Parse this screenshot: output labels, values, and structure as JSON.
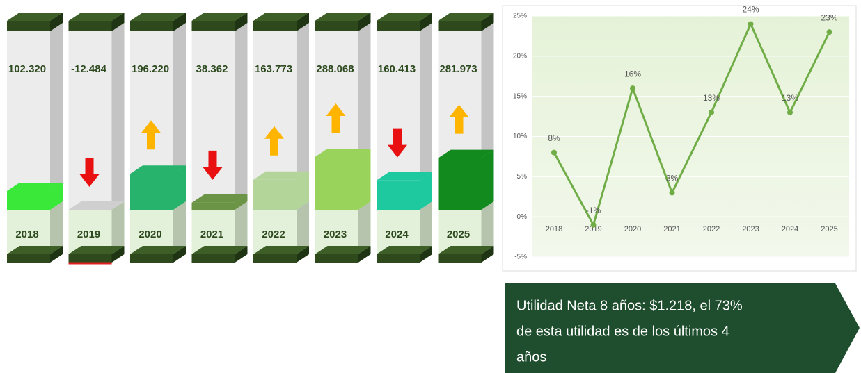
{
  "chart_data": [
    {
      "type": "bar3d",
      "categories": [
        "2018",
        "2019",
        "2020",
        "2021",
        "2022",
        "2023",
        "2024",
        "2025"
      ],
      "values": [
        102320,
        -12484,
        196220,
        38362,
        163773,
        288068,
        160413,
        281973
      ],
      "value_labels": [
        "102.320",
        "-12.484",
        "196.220",
        "38.362",
        "163.773",
        "288.068",
        "160.413",
        "281.973"
      ],
      "colors": [
        "#3ae83a",
        "#cfcfcf",
        "#27b36c",
        "#6b9446",
        "#b3d59a",
        "#9ad35c",
        "#1fc9a0",
        "#138a1e"
      ]
    },
    {
      "type": "line",
      "categories": [
        "2018",
        "2019",
        "2020",
        "2021",
        "2022",
        "2023",
        "2024",
        "2025"
      ],
      "values": [
        8,
        -1,
        16,
        3,
        13,
        24,
        13,
        23
      ],
      "value_labels": [
        "8%",
        "-1%",
        "16%",
        "3%",
        "13%",
        "24%",
        "13%",
        "23%"
      ],
      "color": "#70ad47",
      "ylim": [
        -5,
        25
      ],
      "yticks": [
        {
          "value": -5,
          "label": "-5%"
        },
        {
          "value": 0,
          "label": "0%"
        },
        {
          "value": 5,
          "label": "5%"
        },
        {
          "value": 10,
          "label": "10%"
        },
        {
          "value": 15,
          "label": "15%"
        },
        {
          "value": 20,
          "label": "20%"
        },
        {
          "value": 25,
          "label": "25%"
        }
      ],
      "grid": true
    }
  ],
  "note": {
    "lines": [
      "Utilidad Neta 8 años: $1.218, el 73%",
      "de esta utilidad es de los últimos 4",
      "años"
    ]
  }
}
